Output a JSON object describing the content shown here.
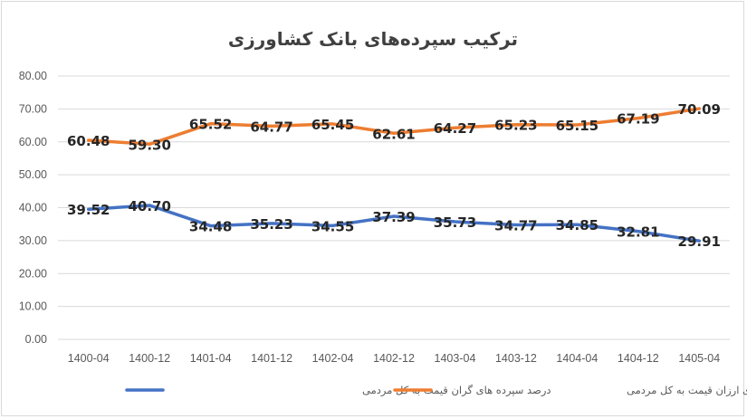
{
  "chart_data": {
    "type": "line",
    "title": "ترکیب سپرده‌های بانک کشاورزی",
    "categories": [
      "1400-04",
      "1400-12",
      "1401-04",
      "1401-12",
      "1402-04",
      "1402-12",
      "1403-04",
      "1403-12",
      "1404-04",
      "1404-12",
      "1405-04"
    ],
    "ylim": [
      0,
      80
    ],
    "yticks": [
      "0.00",
      "10.00",
      "20.00",
      "30.00",
      "40.00",
      "50.00",
      "60.00",
      "70.00",
      "80.00"
    ],
    "grid": true,
    "legend_position": "bottom",
    "series": [
      {
        "name": "درصد سپرده‌های ارزان قیمت به کل مردمی",
        "color": "#ED7D31",
        "values": [
          60.48,
          59.3,
          65.52,
          64.77,
          65.45,
          62.61,
          64.27,
          65.23,
          65.15,
          67.19,
          70.09
        ],
        "labels": [
          "60.48",
          "59.30",
          "65.52",
          "64.77",
          "65.45",
          "62.61",
          "64.27",
          "65.23",
          "65.15",
          "67.19",
          "70.09"
        ]
      },
      {
        "name": "درصد سپرده های گران قیمت به کل مردمی",
        "color": "#4472C4",
        "values": [
          39.52,
          40.7,
          34.48,
          35.23,
          34.55,
          37.39,
          35.73,
          34.77,
          34.85,
          32.81,
          29.91
        ],
        "labels": [
          "39.52",
          "40.70",
          "34.48",
          "35.23",
          "34.55",
          "37.39",
          "35.73",
          "34.77",
          "34.85",
          "32.81",
          "29.91"
        ]
      }
    ]
  }
}
